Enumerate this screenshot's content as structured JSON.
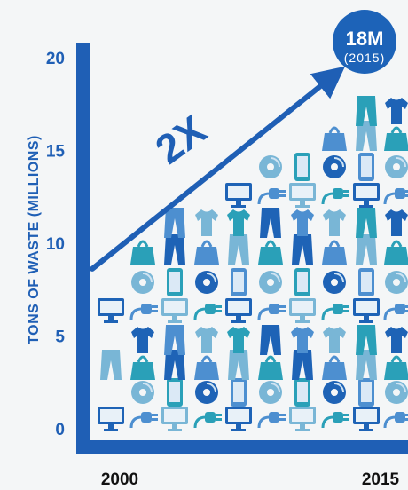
{
  "chart_data": {
    "type": "line",
    "title": "",
    "xlabel": "",
    "ylabel": "TONS OF WASTE (MILLIONS)",
    "x": [
      "2000",
      "2015"
    ],
    "values": [
      9,
      18
    ],
    "ylim": [
      0,
      20
    ],
    "y_ticks": [
      "0",
      "5",
      "10",
      "15",
      "20"
    ],
    "x_ticks": [
      "2000",
      "2015"
    ],
    "annotations": {
      "multiplier": "2X",
      "badge_value": "18M",
      "badge_year": "(2015)"
    },
    "grid": false,
    "icon_types": [
      "monitor-icon",
      "plug-icon",
      "phone-icon",
      "disc-icon",
      "pants-icon",
      "bag-icon",
      "shirt-icon"
    ]
  },
  "colors": {
    "axis": "#1f5fb5",
    "badge": "#1d63b8",
    "icon_dark": "#1e63b6",
    "icon_mid": "#4d8fd0",
    "icon_light": "#79b6d6",
    "icon_teal": "#2aa0b8"
  }
}
